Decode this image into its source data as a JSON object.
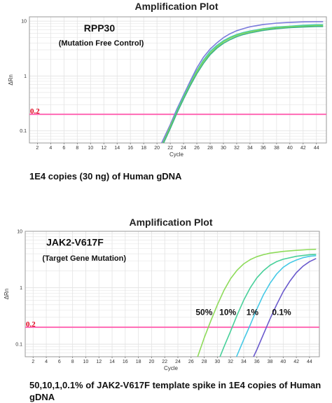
{
  "colors": {
    "threshold": "#ff69b4",
    "threshold_label": "#e0001b",
    "grid": "#e3e3e3"
  },
  "chart_data": [
    {
      "type": "line",
      "title": "Amplification Plot",
      "xlabel": "Cycle",
      "ylabel": "ΔRn",
      "yscale": "log",
      "xlim": [
        0.8,
        45.5
      ],
      "ylim": [
        0.06,
        12
      ],
      "x_ticks": [
        2,
        4,
        6,
        8,
        10,
        12,
        14,
        16,
        18,
        20,
        22,
        24,
        26,
        28,
        30,
        32,
        34,
        36,
        38,
        40,
        42,
        44
      ],
      "y_ticks": [
        {
          "v": 0.1,
          "label": "0.1"
        },
        {
          "v": 1,
          "label": "1"
        },
        {
          "v": 10,
          "label": "10"
        }
      ],
      "grid": true,
      "threshold": {
        "value": 0.2,
        "label": "0.2"
      },
      "annotations": [
        {
          "text": "RPP30",
          "style": "big",
          "x": 9,
          "y": 6.5
        },
        {
          "text": "(Mutation Free Control)",
          "style": "small",
          "x": 5.2,
          "y": 3.6
        }
      ],
      "series": [
        {
          "color": "#7b7bdc",
          "x": [
            20.7,
            22,
            23,
            24,
            25,
            26,
            27,
            28,
            29,
            30,
            31,
            32,
            33,
            34,
            36,
            38,
            40,
            42,
            44,
            45
          ],
          "y": [
            0.06,
            0.13,
            0.25,
            0.45,
            0.8,
            1.4,
            2.2,
            3.1,
            4.0,
            5.0,
            5.9,
            6.7,
            7.3,
            7.9,
            8.7,
            9.2,
            9.5,
            9.7,
            9.8,
            9.8
          ]
        },
        {
          "color": "#44c8b4",
          "x": [
            20.9,
            22,
            23,
            24,
            25,
            26,
            27,
            28,
            29,
            30,
            31,
            32,
            33,
            34,
            36,
            38,
            40,
            42,
            44,
            45
          ],
          "y": [
            0.06,
            0.12,
            0.23,
            0.42,
            0.73,
            1.25,
            1.95,
            2.8,
            3.6,
            4.4,
            5.1,
            5.7,
            6.2,
            6.6,
            7.3,
            7.8,
            8.1,
            8.4,
            8.6,
            8.6
          ]
        },
        {
          "color": "#7fd957",
          "x": [
            20.9,
            22,
            23,
            24,
            25,
            26,
            27,
            28,
            29,
            30,
            31,
            32,
            33,
            34,
            36,
            38,
            40,
            42,
            44,
            45
          ],
          "y": [
            0.06,
            0.12,
            0.22,
            0.4,
            0.7,
            1.2,
            1.85,
            2.6,
            3.4,
            4.2,
            4.9,
            5.5,
            6.0,
            6.4,
            7.1,
            7.6,
            7.9,
            8.1,
            8.3,
            8.3
          ]
        },
        {
          "color": "#3fb38a",
          "x": [
            21.0,
            22,
            23,
            24,
            25,
            26,
            27,
            28,
            29,
            30,
            31,
            32,
            33,
            34,
            36,
            38,
            40,
            42,
            44,
            45
          ],
          "y": [
            0.06,
            0.11,
            0.21,
            0.38,
            0.66,
            1.1,
            1.7,
            2.45,
            3.2,
            3.95,
            4.6,
            5.2,
            5.7,
            6.1,
            6.8,
            7.3,
            7.6,
            7.8,
            8.0,
            8.0
          ]
        }
      ]
    },
    {
      "type": "line",
      "title": "Amplification Plot",
      "xlabel": "Cycle",
      "ylabel": "ΔRn",
      "yscale": "log",
      "xlim": [
        0.8,
        45.5
      ],
      "ylim": [
        0.06,
        10
      ],
      "x_ticks": [
        2,
        4,
        6,
        8,
        10,
        12,
        14,
        16,
        18,
        20,
        22,
        24,
        26,
        28,
        30,
        32,
        34,
        36,
        38,
        40,
        42,
        44
      ],
      "y_ticks": [
        {
          "v": 0.1,
          "label": "0.1"
        },
        {
          "v": 1,
          "label": "1"
        },
        {
          "v": 10,
          "label": "10"
        }
      ],
      "grid": true,
      "threshold": {
        "value": 0.2,
        "label": "0.2"
      },
      "annotations": [
        {
          "text": "JAK2-V617F",
          "style": "big",
          "x": 4.0,
          "y": 5.6
        },
        {
          "text": "(Target Gene Mutation)",
          "style": "small",
          "x": 3.4,
          "y": 3.0
        },
        {
          "text": "50%",
          "style": "pct",
          "x": 26.7,
          "y": 0.33
        },
        {
          "text": "10%",
          "style": "pct",
          "x": 30.3,
          "y": 0.33
        },
        {
          "text": "1%",
          "style": "pct",
          "x": 34.4,
          "y": 0.33
        },
        {
          "text": "0.1%",
          "style": "pct",
          "x": 38.3,
          "y": 0.33
        }
      ],
      "series": [
        {
          "name": "50%",
          "color": "#8edb5a",
          "x": [
            27.0,
            28,
            29,
            30,
            31,
            32,
            33,
            34,
            35,
            36,
            37,
            38,
            40,
            42,
            44,
            45
          ],
          "y": [
            0.06,
            0.13,
            0.26,
            0.5,
            0.9,
            1.45,
            2.05,
            2.65,
            3.15,
            3.55,
            3.85,
            4.1,
            4.4,
            4.6,
            4.75,
            4.8
          ]
        },
        {
          "name": "10%",
          "color": "#48d09a",
          "x": [
            30.4,
            31,
            32,
            33,
            34,
            35,
            36,
            37,
            38,
            39,
            40,
            42,
            44,
            45
          ],
          "y": [
            0.06,
            0.09,
            0.17,
            0.33,
            0.6,
            1.0,
            1.5,
            2.0,
            2.5,
            2.9,
            3.2,
            3.6,
            3.85,
            3.9
          ]
        },
        {
          "name": "1%",
          "color": "#45c9e6",
          "x": [
            32.9,
            34,
            35,
            36,
            37,
            38,
            39,
            40,
            41,
            42,
            43,
            44,
            45
          ],
          "y": [
            0.06,
            0.12,
            0.22,
            0.42,
            0.75,
            1.2,
            1.75,
            2.3,
            2.75,
            3.1,
            3.4,
            3.6,
            3.7
          ]
        },
        {
          "name": "0.1%",
          "color": "#6a5acd",
          "x": [
            35.5,
            36,
            37,
            38,
            39,
            40,
            41,
            42,
            43,
            44,
            45
          ],
          "y": [
            0.06,
            0.08,
            0.15,
            0.28,
            0.5,
            0.85,
            1.3,
            1.85,
            2.4,
            2.9,
            3.3
          ]
        }
      ]
    }
  ],
  "captions": [
    "1E4 copies (30 ng) of Human gDNA",
    "50,10,1,0.1% of JAK2-V617F template spike in 1E4 copies of Human gDNA"
  ]
}
